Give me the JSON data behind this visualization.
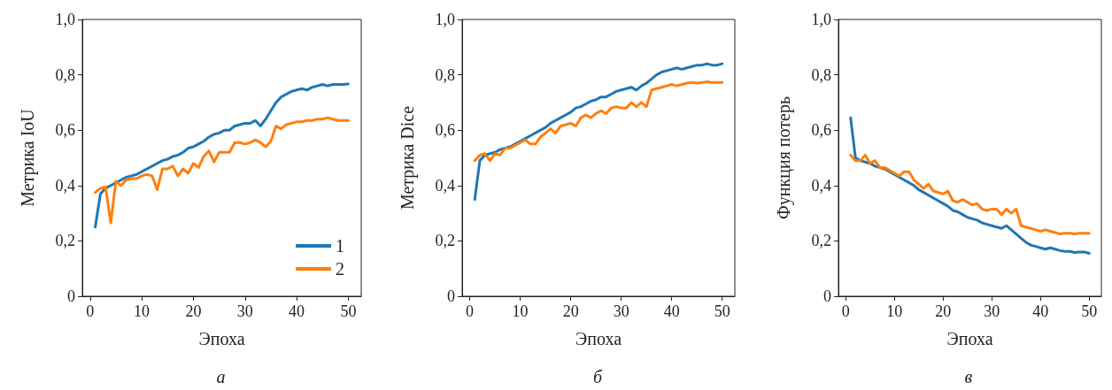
{
  "chart_data": [
    {
      "type": "line",
      "xlabel": "Эпоха",
      "ylabel": "Метрика IoU",
      "annotations": [
        "а"
      ],
      "xlim": [
        -1.5,
        52.5
      ],
      "xticks": [
        0,
        10,
        20,
        30,
        40,
        50
      ],
      "ylim": [
        0,
        1
      ],
      "yticks": [
        {
          "value": 0,
          "label": "0"
        },
        {
          "value": 0.2,
          "label": "0,2"
        },
        {
          "value": 0.4,
          "label": "0,4"
        },
        {
          "value": 0.6,
          "label": "0,6"
        },
        {
          "value": 0.8,
          "label": "0,8"
        },
        {
          "value": 1,
          "label": "1,0"
        }
      ],
      "grid": false,
      "legend": "bottom right",
      "marker": "none",
      "line_style": "solid",
      "x": [
        1,
        2,
        3,
        4,
        5,
        6,
        7,
        8,
        9,
        10,
        11,
        12,
        13,
        14,
        15,
        16,
        17,
        18,
        19,
        20,
        21,
        22,
        23,
        24,
        25,
        26,
        27,
        28,
        29,
        30,
        31,
        32,
        33,
        34,
        35,
        36,
        37,
        38,
        39,
        40,
        41,
        42,
        43,
        44,
        45,
        46,
        47,
        48,
        49,
        50
      ],
      "series": [
        {
          "name": "1",
          "color": "#1f77b4",
          "values": [
            0.25,
            0.37,
            0.39,
            0.4,
            0.41,
            0.42,
            0.43,
            0.435,
            0.44,
            0.45,
            0.46,
            0.47,
            0.48,
            0.49,
            0.495,
            0.505,
            0.51,
            0.52,
            0.535,
            0.54,
            0.55,
            0.56,
            0.575,
            0.585,
            0.59,
            0.6,
            0.6,
            0.615,
            0.62,
            0.625,
            0.625,
            0.635,
            0.615,
            0.64,
            0.67,
            0.7,
            0.72,
            0.73,
            0.74,
            0.745,
            0.75,
            0.745,
            0.755,
            0.76,
            0.765,
            0.76,
            0.765,
            0.765,
            0.765,
            0.767
          ]
        },
        {
          "name": "2",
          "color": "#ff7f0e",
          "values": [
            0.375,
            0.39,
            0.395,
            0.265,
            0.415,
            0.4,
            0.42,
            0.425,
            0.425,
            0.435,
            0.44,
            0.435,
            0.385,
            0.46,
            0.46,
            0.47,
            0.435,
            0.46,
            0.445,
            0.48,
            0.465,
            0.505,
            0.525,
            0.485,
            0.52,
            0.52,
            0.52,
            0.555,
            0.555,
            0.55,
            0.555,
            0.565,
            0.555,
            0.54,
            0.56,
            0.615,
            0.605,
            0.62,
            0.625,
            0.63,
            0.63,
            0.635,
            0.635,
            0.64,
            0.64,
            0.645,
            0.64,
            0.635,
            0.635,
            0.635
          ]
        }
      ]
    },
    {
      "type": "line",
      "xlabel": "Эпоха",
      "ylabel": "Метрика Dice",
      "annotations": [
        "б"
      ],
      "xlim": [
        -1.5,
        52.5
      ],
      "xticks": [
        0,
        10,
        20,
        30,
        40,
        50
      ],
      "ylim": [
        0,
        1
      ],
      "yticks": [
        {
          "value": 0,
          "label": "0"
        },
        {
          "value": 0.2,
          "label": "0,2"
        },
        {
          "value": 0.4,
          "label": "0,4"
        },
        {
          "value": 0.6,
          "label": "0,6"
        },
        {
          "value": 0.8,
          "label": "0,8"
        },
        {
          "value": 1,
          "label": "1,0"
        }
      ],
      "grid": false,
      "marker": "none",
      "line_style": "solid",
      "x": [
        1,
        2,
        3,
        4,
        5,
        6,
        7,
        8,
        9,
        10,
        11,
        12,
        13,
        14,
        15,
        16,
        17,
        18,
        19,
        20,
        21,
        22,
        23,
        24,
        25,
        26,
        27,
        28,
        29,
        30,
        31,
        32,
        33,
        34,
        35,
        36,
        37,
        38,
        39,
        40,
        41,
        42,
        43,
        44,
        45,
        46,
        47,
        48,
        49,
        50
      ],
      "series": [
        {
          "color": "#1f77b4",
          "values": [
            0.35,
            0.49,
            0.51,
            0.515,
            0.52,
            0.53,
            0.535,
            0.54,
            0.55,
            0.56,
            0.57,
            0.58,
            0.59,
            0.6,
            0.61,
            0.625,
            0.635,
            0.645,
            0.655,
            0.665,
            0.68,
            0.685,
            0.695,
            0.705,
            0.71,
            0.72,
            0.72,
            0.73,
            0.74,
            0.745,
            0.75,
            0.755,
            0.745,
            0.76,
            0.77,
            0.785,
            0.8,
            0.81,
            0.815,
            0.82,
            0.825,
            0.82,
            0.825,
            0.83,
            0.835,
            0.835,
            0.84,
            0.835,
            0.835,
            0.84
          ]
        },
        {
          "color": "#ff7f0e",
          "values": [
            0.49,
            0.51,
            0.515,
            0.49,
            0.515,
            0.51,
            0.535,
            0.535,
            0.545,
            0.555,
            0.565,
            0.55,
            0.55,
            0.575,
            0.59,
            0.605,
            0.59,
            0.615,
            0.62,
            0.625,
            0.615,
            0.645,
            0.655,
            0.645,
            0.66,
            0.67,
            0.66,
            0.68,
            0.685,
            0.68,
            0.68,
            0.7,
            0.685,
            0.7,
            0.685,
            0.745,
            0.75,
            0.755,
            0.76,
            0.765,
            0.76,
            0.765,
            0.77,
            0.772,
            0.77,
            0.772,
            0.775,
            0.772,
            0.772,
            0.772
          ]
        }
      ]
    },
    {
      "type": "line",
      "xlabel": "Эпоха",
      "ylabel": "Функция потерь",
      "annotations": [
        "в"
      ],
      "xlim": [
        -1.5,
        52.5
      ],
      "xticks": [
        0,
        10,
        20,
        30,
        40,
        50
      ],
      "ylim": [
        0,
        1
      ],
      "yticks": [
        {
          "value": 0,
          "label": "0"
        },
        {
          "value": 0.2,
          "label": "0,2"
        },
        {
          "value": 0.4,
          "label": "0,4"
        },
        {
          "value": 0.6,
          "label": "0,6"
        },
        {
          "value": 0.8,
          "label": "0,8"
        },
        {
          "value": 1,
          "label": "1,0"
        }
      ],
      "grid": false,
      "marker": "none",
      "line_style": "solid",
      "x": [
        1,
        2,
        3,
        4,
        5,
        6,
        7,
        8,
        9,
        10,
        11,
        12,
        13,
        14,
        15,
        16,
        17,
        18,
        19,
        20,
        21,
        22,
        23,
        24,
        25,
        26,
        27,
        28,
        29,
        30,
        31,
        32,
        33,
        34,
        35,
        36,
        37,
        38,
        39,
        40,
        41,
        42,
        43,
        44,
        45,
        46,
        47,
        48,
        49,
        50
      ],
      "series": [
        {
          "color": "#1f77b4",
          "values": [
            0.645,
            0.5,
            0.49,
            0.485,
            0.48,
            0.47,
            0.465,
            0.46,
            0.45,
            0.44,
            0.43,
            0.42,
            0.41,
            0.4,
            0.385,
            0.375,
            0.365,
            0.355,
            0.345,
            0.335,
            0.325,
            0.31,
            0.305,
            0.295,
            0.285,
            0.28,
            0.275,
            0.265,
            0.26,
            0.255,
            0.25,
            0.245,
            0.255,
            0.24,
            0.225,
            0.21,
            0.195,
            0.185,
            0.18,
            0.175,
            0.17,
            0.175,
            0.17,
            0.165,
            0.162,
            0.162,
            0.158,
            0.16,
            0.16,
            0.155
          ]
        },
        {
          "color": "#ff7f0e",
          "values": [
            0.51,
            0.49,
            0.49,
            0.51,
            0.48,
            0.49,
            0.465,
            0.465,
            0.455,
            0.445,
            0.435,
            0.45,
            0.45,
            0.42,
            0.405,
            0.39,
            0.405,
            0.38,
            0.375,
            0.37,
            0.38,
            0.345,
            0.34,
            0.35,
            0.34,
            0.33,
            0.335,
            0.315,
            0.31,
            0.315,
            0.315,
            0.295,
            0.315,
            0.3,
            0.315,
            0.255,
            0.25,
            0.245,
            0.24,
            0.235,
            0.24,
            0.235,
            0.23,
            0.225,
            0.228,
            0.228,
            0.225,
            0.228,
            0.228,
            0.228
          ]
        }
      ]
    }
  ]
}
